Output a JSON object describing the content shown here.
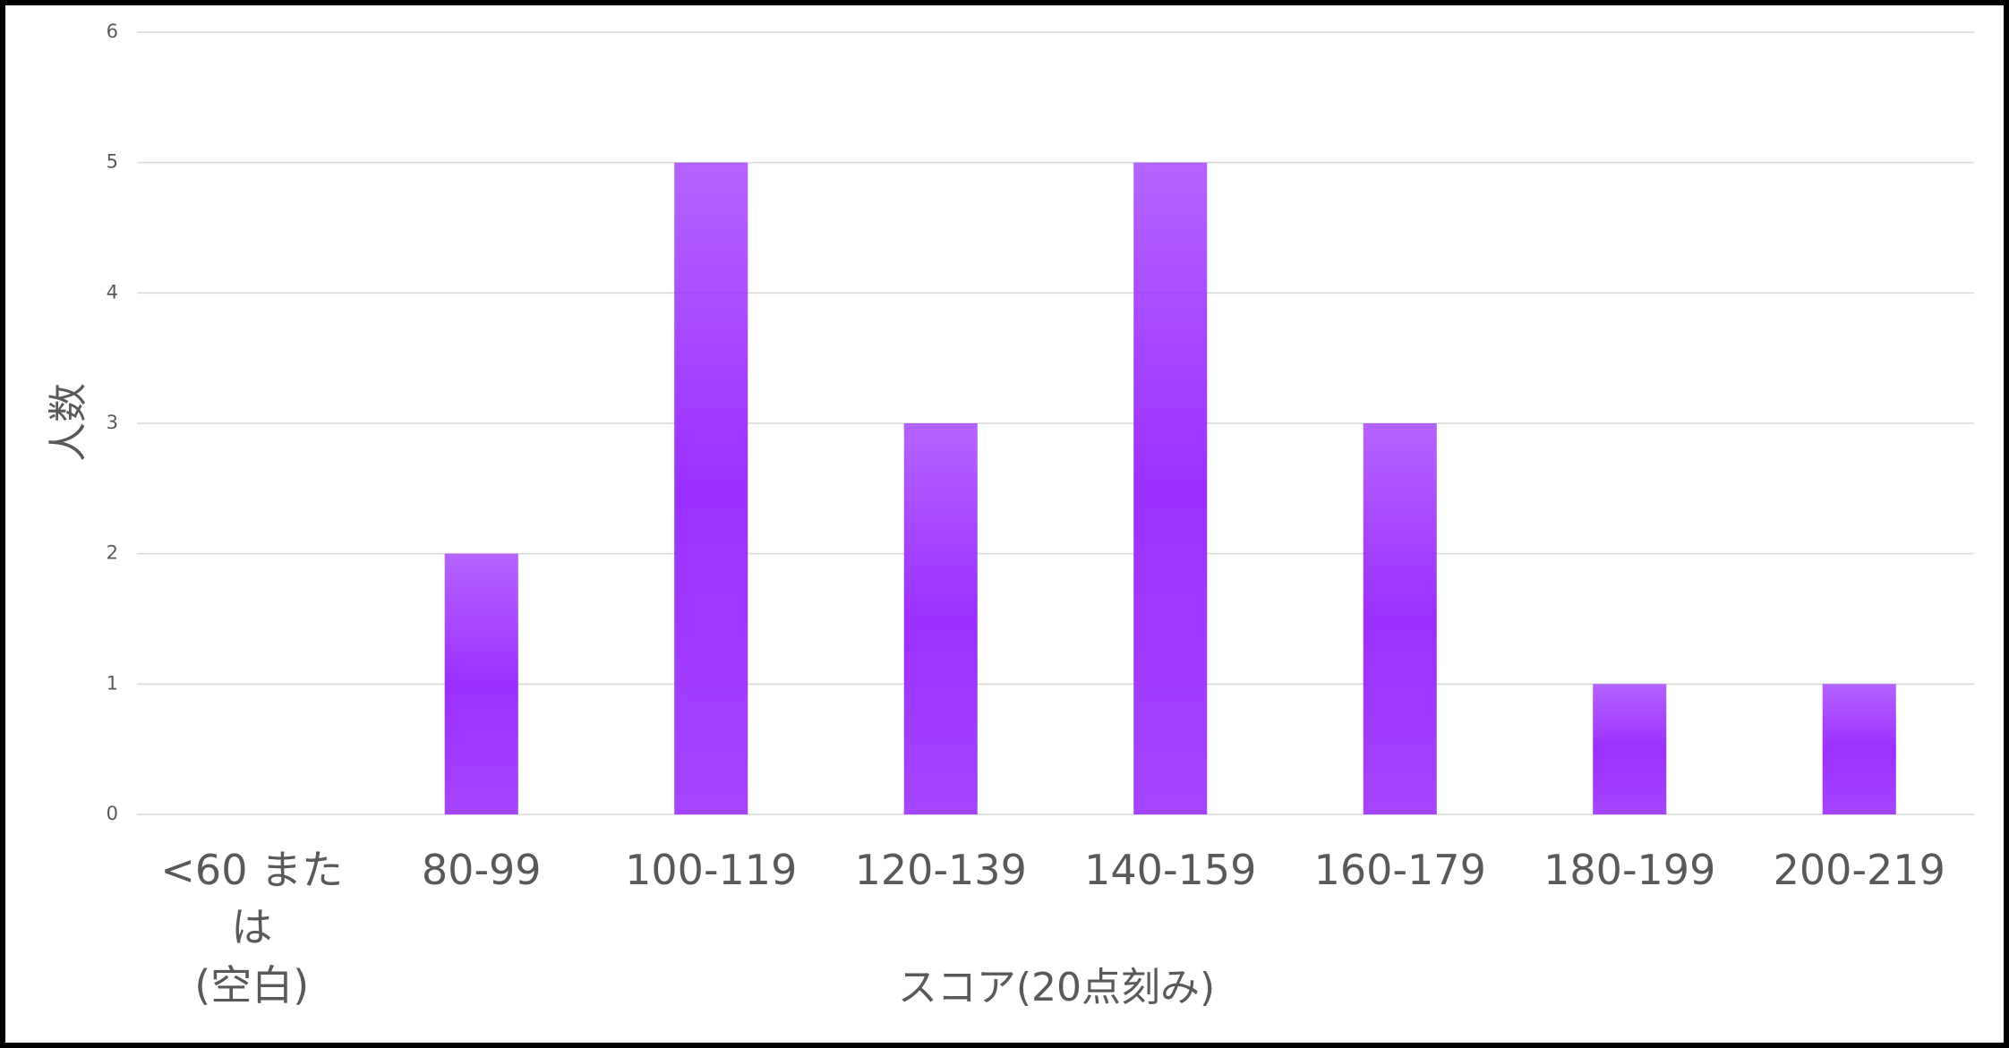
{
  "chart_data": {
    "type": "bar",
    "x_label": "スコア(20点刻み)",
    "y_label": "人数",
    "categories": [
      "<60 または\n(空白)",
      "80-99",
      "100-119",
      "120-139",
      "140-159",
      "160-179",
      "180-199",
      "200-219"
    ],
    "values": [
      0,
      2,
      5,
      3,
      5,
      3,
      1,
      1
    ],
    "color": "#9b30ff",
    "ylim": [
      0,
      6
    ],
    "yticks": [
      0,
      1,
      2,
      3,
      4,
      5,
      6
    ],
    "grid": true
  }
}
